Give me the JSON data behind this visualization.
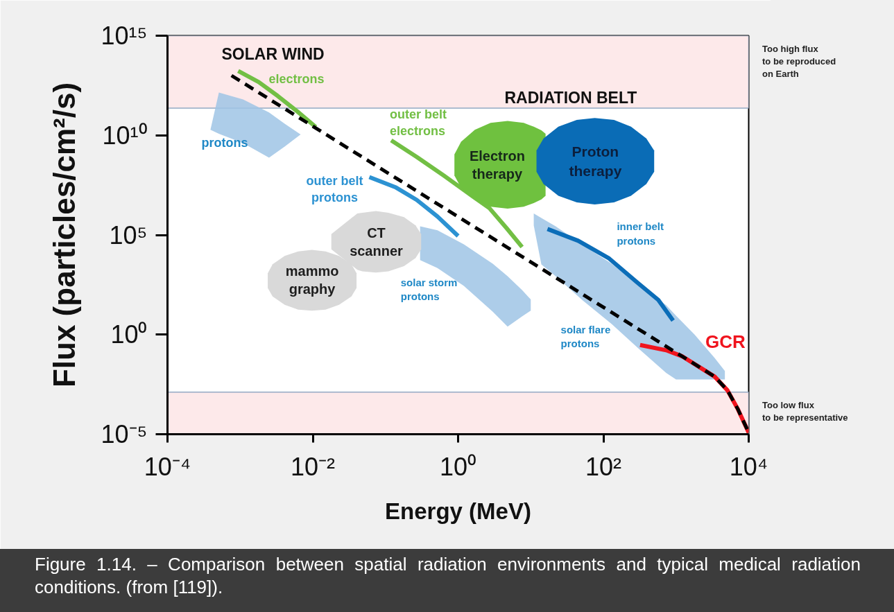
{
  "chart_data": {
    "type": "line",
    "log": "xy",
    "xlabel": "Energy (MeV)",
    "ylabel": "Flux (particles/cm²/s)",
    "xlim": [
      0.0001,
      10000
    ],
    "ylim": [
      1e-05,
      1000000000000000.0
    ],
    "xticks": [
      {
        "value": 0.0001,
        "label": "10⁻⁴"
      },
      {
        "value": 0.01,
        "label": "10⁻²"
      },
      {
        "value": 1,
        "label": "10⁰"
      },
      {
        "value": 100,
        "label": "10²"
      },
      {
        "value": 10000,
        "label": "10⁴"
      }
    ],
    "yticks": [
      {
        "value": 1e-05,
        "label": "10⁻⁵"
      },
      {
        "value": 1,
        "label": "10⁰"
      },
      {
        "value": 100000,
        "label": "10⁵"
      },
      {
        "value": 10000000000.0,
        "label": "10¹⁰"
      },
      {
        "value": 1000000000000000.0,
        "label": "10¹⁵"
      }
    ],
    "bands": [
      {
        "axis": "y",
        "from": 230000000000.0,
        "to": 1000000000000000.0,
        "label": "Too high flux\nto be reproduced\non Earth",
        "color": "#fde9ea"
      },
      {
        "axis": "y",
        "from": 1e-05,
        "to": 0.0013,
        "label": "Too low flux\nto be representative",
        "color": "#fde9ea"
      }
    ],
    "annotations": [
      "SOLAR WIND",
      "RADIATION BELT",
      "Figure 1.14. – Comparison between spatial radiation environments and typical medical radiation conditions. (from [119])."
    ],
    "series": [
      {
        "name": "protons",
        "type": "area",
        "x": [
          0.00039,
          0.00051,
          0.0011,
          0.0025,
          0.0041,
          0.0068
        ],
        "values": [
          null,
          null,
          null,
          null,
          null,
          null
        ],
        "lower": [
          19000000000.0,
          12000000000.0,
          4100000000.0,
          760000000.0,
          2700000000.0,
          11000000000.0
        ],
        "upper": [
          19000000000.0,
          1400000000000.0,
          630000000000.0,
          140000000000.0,
          38000000000.0,
          11000000000.0
        ]
      },
      {
        "name": "solar storm\nprotons",
        "type": "area",
        "x": [
          0.3,
          0.52,
          1.2,
          3.0,
          4.8,
          7.6,
          10
        ],
        "values": [
          null,
          null,
          null,
          null,
          null,
          null,
          null
        ],
        "lower": [
          5500.0,
          2200.0,
          280,
          14,
          2.5,
          8.2,
          16
        ],
        "upper": [
          270000.0,
          170000.0,
          34000.0,
          3600.0,
          850,
          170,
          58
        ]
      },
      {
        "name": "solar flare\nprotons",
        "type": "area",
        "x": [
          11,
          14,
          22,
          52,
          130,
          300,
          730,
          1000,
          1800,
          3400,
          4700
        ],
        "values": [
          null,
          null,
          null,
          null,
          null,
          null,
          null,
          null,
          null,
          null,
          null
        ],
        "lower": [
          300000.0,
          3300.0,
          850,
          52,
          3.4,
          0.21,
          0.012,
          0.0056,
          0.0056,
          0.0056,
          0.0056
        ],
        "upper": [
          1200000.0,
          710000.0,
          270000.0,
          31000.0,
          3600.0,
          330,
          30,
          8.9,
          1.0,
          0.067,
          0.015
        ]
      },
      {
        "name": "CT\nscanner",
        "type": "area",
        "x": [
          0.018,
          0.041,
          0.048,
          0.074,
          0.11,
          0.18,
          0.26,
          0.31
        ],
        "values": [
          null,
          null,
          null,
          null,
          null,
          null,
          null,
          null
        ],
        "lower": [
          19000.0,
          1800.0,
          1500.0,
          1300.0,
          1500.0,
          2700.0,
          7000.0,
          19000.0
        ],
        "upper": [
          110000.0,
          1200000.0,
          1300000.0,
          1600000.0,
          1300000.0,
          780000.0,
          300000.0,
          110000.0
        ]
      },
      {
        "name": "mammo\ngraphy",
        "type": "area",
        "x": [
          0.0024,
          0.0028,
          0.0041,
          0.0063,
          0.0097,
          0.015,
          0.023,
          0.034,
          0.04
        ],
        "values": [
          null,
          null,
          null,
          null,
          null,
          null,
          null,
          null,
          null
        ],
        "lower": [
          220,
          82,
          31,
          18,
          16,
          18,
          31,
          82,
          220
        ],
        "upper": [
          1200.0,
          3400.0,
          8800.0,
          15000.0,
          18000.0,
          15000.0,
          8800.0,
          3400.0,
          1200.0
        ]
      },
      {
        "name": "electrons",
        "color": "#72bf44",
        "x": [
          0.00094,
          0.0018,
          0.0033,
          0.0061,
          0.011
        ],
        "values": [
          17000000000000.0,
          4700000000000.0,
          940000000000.0,
          160000000000.0,
          26000000000.0
        ]
      },
      {
        "name": "outer belt\nelectrons",
        "color": "#72bf44",
        "x": [
          0.12,
          0.27,
          0.64,
          1.6,
          2.7,
          4.7,
          7.6
        ],
        "values": [
          5600000000.0,
          820000000.0,
          94000000.0,
          8500000.0,
          2200000.0,
          210000.0,
          25000.0
        ]
      },
      {
        "name": "outer belt\nprotons",
        "color": "#2c92d2",
        "x": [
          0.06,
          0.14,
          0.27,
          0.52,
          1.0
        ],
        "values": [
          80000000.0,
          24000000.0,
          5700000.0,
          840000.0,
          89000.0
        ]
      },
      {
        "name": "inner belt\nprotons",
        "color": "#0b6db8",
        "x": [
          17,
          45,
          120,
          290,
          570,
          910
        ],
        "values": [
          200000.0,
          51000.0,
          6600.0,
          420,
          55,
          5.1
        ]
      },
      {
        "name": "GCR",
        "color": "#f0141e",
        "x": [
          320,
          750,
          1200,
          3400,
          5100,
          7100,
          10000
        ],
        "values": [
          0.3,
          0.16,
          0.083,
          0.0078,
          0.0016,
          0.00018,
          1.2e-05
        ]
      },
      {
        "color": "#000000",
        "line_style": "dashed",
        "x": [
          0.00076,
          3400,
          5100,
          7100,
          10000
        ],
        "values": [
          10000000000000.0,
          0.0078,
          0.0016,
          0.00018,
          1.2e-05
        ]
      },
      {
        "name": "Electron\ntherapy",
        "type": "area",
        "x": [
          0.89,
          1.1,
          1.7,
          2.8,
          4.8,
          8.0,
          11,
          14,
          16
        ],
        "values": [
          null,
          null,
          null,
          null,
          null,
          null,
          null,
          null,
          null
        ],
        "lower": [
          96000000.0,
          23000000.0,
          5700000.0,
          2600000.0,
          2100000.0,
          2600000.0,
          4000000.0,
          6100000.0,
          9200000.0
        ],
        "upper": [
          1100000000.0,
          4800000000.0,
          19000000000.0,
          42000000000.0,
          53000000000.0,
          42000000000.0,
          27000000000.0,
          18000000000.0,
          12000000000.0
        ]
      },
      {
        "name": "Proton\ntherapy",
        "type": "area",
        "x": [
          12,
          15,
          24,
          43,
          76,
          140,
          240,
          390,
          500
        ],
        "values": [
          null,
          null,
          null,
          null,
          null,
          null,
          null,
          null,
          null
        ],
        "lower": [
          150000000.0,
          36000000.0,
          9300000.0,
          4300000.0,
          3400000.0,
          4300000.0,
          9300000.0,
          36000000.0,
          150000000.0
        ],
        "upper": [
          1700000000.0,
          7000000000.0,
          27000000000.0,
          59000000000.0,
          74000000000.0,
          59000000000.0,
          27000000000.0,
          7000000000.0,
          1700000000.0
        ]
      }
    ]
  }
}
